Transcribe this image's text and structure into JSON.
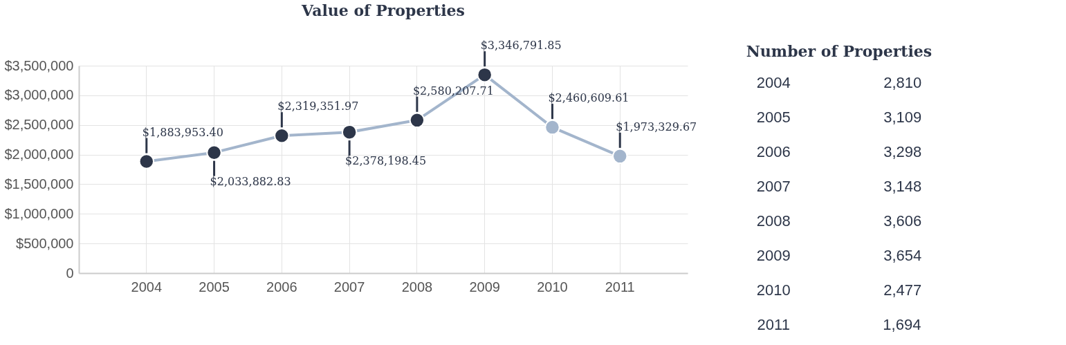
{
  "chart_data": [
    {
      "type": "line",
      "title": "Value of Properties",
      "categories": [
        "2004",
        "2005",
        "2006",
        "2007",
        "2008",
        "2009",
        "2010",
        "2011"
      ],
      "values": [
        1883953.4,
        2033882.83,
        2319351.97,
        2378198.45,
        2580207.71,
        3346791.85,
        2460609.61,
        1973329.67
      ],
      "value_labels": [
        "$1,883,953.40",
        "$2,033,882.83",
        "$2,319,351.97",
        "$2,378,198.45",
        "$2,580,207.71",
        "$3,346,791.85",
        "$2,460,609.61",
        "$1,973,329.67"
      ],
      "color": "#a3b5cc",
      "colors": [
        "#2d3649",
        "#2d3649",
        "#2d3649",
        "#2d3649",
        "#2d3649",
        "#2d3649",
        "#a3b5cc",
        "#a3b5cc"
      ],
      "ylim": [
        0,
        3500000
      ],
      "yticks": [
        {
          "value": 0,
          "label": "0"
        },
        {
          "value": 500000,
          "label": "$500,000"
        },
        {
          "value": 1000000,
          "label": "$1,000,000"
        },
        {
          "value": 1500000,
          "label": "$1,500,000"
        },
        {
          "value": 2000000,
          "label": "$2,000,000"
        },
        {
          "value": 2500000,
          "label": "$2,500,000"
        },
        {
          "value": 3000000,
          "label": "$3,000,000"
        },
        {
          "value": 3500000,
          "label": "$3,500,000"
        }
      ],
      "grid": true,
      "marker": "circle"
    },
    {
      "type": "other",
      "title": "Number of Properties",
      "annotations": [
        "2004",
        "2,810",
        "2005",
        "3,109",
        "2006",
        "3,298",
        "2007",
        "3,148",
        "2008",
        "3,606",
        "2009",
        "3,654",
        "2010",
        "2,477",
        "2011",
        "1,694"
      ]
    }
  ]
}
